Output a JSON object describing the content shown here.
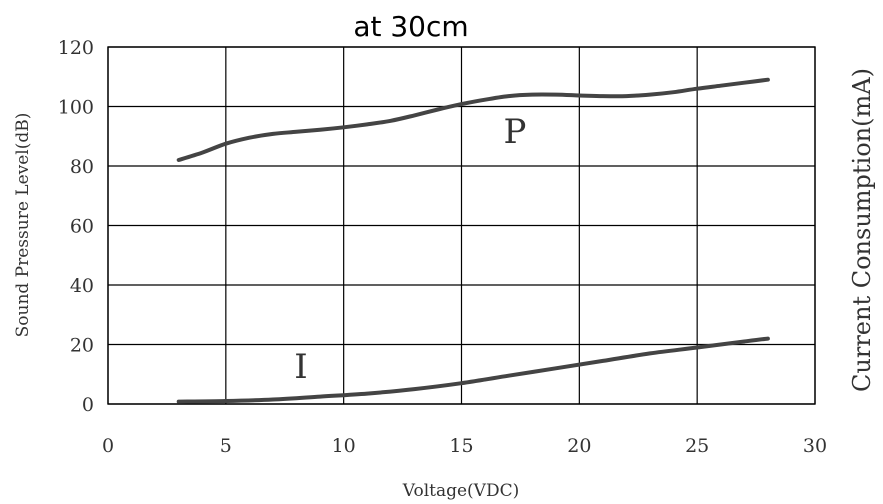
{
  "chart_data": {
    "type": "line",
    "title": "at 30cm",
    "xlabel": "Voltage(VDC)",
    "ylabel": "Sound Pressure Level(dB)",
    "ylabel_right": "Current Consumption(mA)",
    "xlim": [
      0,
      30
    ],
    "ylim": [
      0,
      120
    ],
    "x_ticks": [
      "0",
      "5",
      "10",
      "15",
      "20",
      "25",
      "30"
    ],
    "y_ticks": [
      "0",
      "20",
      "40",
      "60",
      "80",
      "100",
      "120"
    ],
    "grid": true,
    "series": [
      {
        "name": "P",
        "x": [
          3,
          4,
          5,
          6,
          7,
          8,
          9,
          10,
          11,
          12,
          13,
          14,
          15,
          16,
          17,
          18,
          19,
          20,
          21,
          22,
          23,
          24,
          25,
          26,
          27,
          28
        ],
        "y": [
          82,
          84.5,
          87.5,
          89.5,
          90.8,
          91.5,
          92.2,
          93,
          94,
          95.2,
          97,
          99,
          100.8,
          102.3,
          103.5,
          104,
          104,
          103.7,
          103.5,
          103.5,
          104,
          104.8,
          106,
          107,
          108,
          109
        ]
      },
      {
        "name": "I",
        "x": [
          3,
          5,
          7,
          9,
          11,
          13,
          15,
          17,
          19,
          21,
          23,
          25,
          27,
          28
        ],
        "y": [
          0.8,
          1,
          1.5,
          2.5,
          3.5,
          5,
          7,
          9.5,
          12,
          14.5,
          17,
          19,
          21,
          22
        ]
      }
    ]
  }
}
